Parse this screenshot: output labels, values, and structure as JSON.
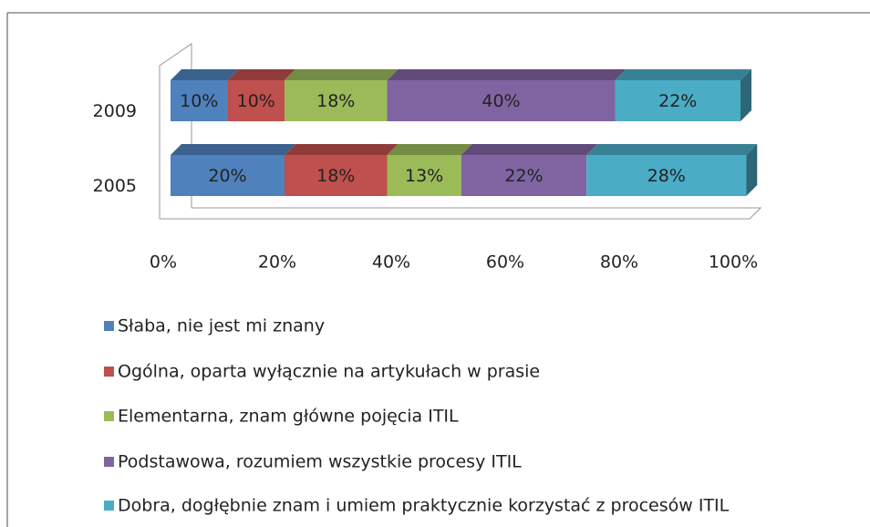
{
  "chart_data": {
    "type": "bar",
    "orientation": "horizontal",
    "stacked": true,
    "categories": [
      "2009",
      "2005"
    ],
    "series": [
      {
        "name": "Słaba, nie jest mi znany",
        "color": "#4f81bd",
        "values": [
          10,
          20
        ],
        "value_labels": [
          "10%",
          "20%"
        ]
      },
      {
        "name": "Ogólna, oparta wyłącznie na artykułach w prasie",
        "color": "#c0504d",
        "values": [
          10,
          18
        ],
        "value_labels": [
          "10%",
          "18%"
        ]
      },
      {
        "name": "Elementarna, znam główne pojęcia ITIL",
        "color": "#9bbb59",
        "values": [
          18,
          13
        ],
        "value_labels": [
          "18%",
          "13%"
        ]
      },
      {
        "name": "Podstawowa, rozumiem wszystkie procesy ITIL",
        "color": "#8064a2",
        "values": [
          40,
          22
        ],
        "value_labels": [
          "40%",
          "22%"
        ]
      },
      {
        "name": "Dobra, dogłębnie znam i umiem praktycznie korzystać z procesów ITIL",
        "color": "#4bacc6",
        "values": [
          22,
          28
        ],
        "value_labels": [
          "22%",
          "28%"
        ]
      }
    ],
    "xlim": [
      0,
      100
    ],
    "xticks": [
      {
        "value": 0,
        "label": "0%"
      },
      {
        "value": 20,
        "label": "20%"
      },
      {
        "value": 40,
        "label": "40%"
      },
      {
        "value": 60,
        "label": "60%"
      },
      {
        "value": 80,
        "label": "80%"
      },
      {
        "value": 100,
        "label": "100%"
      }
    ],
    "legend": "bottom"
  }
}
